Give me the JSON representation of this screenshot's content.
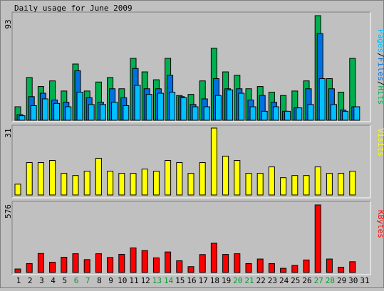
{
  "title": "Daily usage for June 2009",
  "colors": {
    "background": "#c0c0c0",
    "hits": "#00b050",
    "files": "#0070e0",
    "pages": "#00c0ff",
    "visits": "#ffff00",
    "kbytes": "#ff0000",
    "weekend": "#00a030",
    "axis_label": "#000000"
  },
  "right_labels": {
    "pages": "Pages",
    "files": "Files",
    "hits": "Hits",
    "separator": "/",
    "visits": "Visits",
    "kbytes": "KBytes"
  },
  "chart_data": [
    {
      "type": "bar",
      "name": "hits-files-pages",
      "max_label": "93",
      "ylim": [
        0,
        93
      ],
      "x": [
        1,
        2,
        3,
        4,
        5,
        6,
        7,
        8,
        9,
        10,
        11,
        12,
        13,
        14,
        15,
        16,
        17,
        18,
        19,
        20,
        21,
        22,
        23,
        24,
        25,
        26,
        27,
        28,
        29,
        30
      ],
      "series": [
        {
          "name": "Hits",
          "values": [
            12,
            38,
            30,
            35,
            26,
            50,
            26,
            34,
            38,
            28,
            55,
            43,
            36,
            55,
            22,
            23,
            35,
            64,
            43,
            40,
            28,
            30,
            25,
            22,
            26,
            35,
            93,
            37,
            25,
            55
          ]
        },
        {
          "name": "Files",
          "values": [
            5,
            21,
            24,
            18,
            16,
            44,
            20,
            16,
            28,
            20,
            46,
            28,
            28,
            40,
            21,
            14,
            19,
            37,
            28,
            28,
            18,
            22,
            16,
            8,
            11,
            28,
            77,
            28,
            9,
            12
          ]
        },
        {
          "name": "Pages",
          "values": [
            4,
            13,
            19,
            15,
            12,
            25,
            14,
            14,
            16,
            13,
            31,
            23,
            24,
            25,
            20,
            12,
            12,
            22,
            27,
            24,
            12,
            8,
            12,
            8,
            11,
            14,
            37,
            14,
            8,
            12
          ]
        }
      ]
    },
    {
      "type": "bar",
      "name": "visits",
      "max_label": "31",
      "ylim": [
        0,
        31
      ],
      "x": [
        1,
        2,
        3,
        4,
        5,
        6,
        7,
        8,
        9,
        10,
        11,
        12,
        13,
        14,
        15,
        16,
        17,
        18,
        19,
        20,
        21,
        22,
        23,
        24,
        25,
        26,
        27,
        28,
        29,
        30
      ],
      "series": [
        {
          "name": "Visits",
          "values": [
            5,
            15,
            15,
            16,
            10,
            9,
            11,
            17,
            11,
            10,
            10,
            12,
            11,
            16,
            15,
            10,
            15,
            31,
            18,
            16,
            10,
            10,
            13,
            8,
            9,
            9,
            13,
            10,
            10,
            11
          ]
        }
      ]
    },
    {
      "type": "bar",
      "name": "kbytes",
      "max_label": "576",
      "ylim": [
        0,
        576
      ],
      "x": [
        1,
        2,
        3,
        4,
        5,
        6,
        7,
        8,
        9,
        10,
        11,
        12,
        13,
        14,
        15,
        16,
        17,
        18,
        19,
        20,
        21,
        22,
        23,
        24,
        25,
        26,
        27,
        28,
        29,
        30
      ],
      "series": [
        {
          "name": "KBytes",
          "values": [
            30,
            76,
            162,
            88,
            130,
            160,
            110,
            160,
            128,
            155,
            210,
            187,
            125,
            175,
            100,
            50,
            153,
            250,
            154,
            160,
            76,
            115,
            76,
            36,
            60,
            107,
            576,
            115,
            45,
            92
          ]
        }
      ]
    }
  ],
  "x_axis": {
    "labels": [
      "1",
      "2",
      "3",
      "4",
      "5",
      "6",
      "7",
      "8",
      "9",
      "10",
      "11",
      "12",
      "13",
      "14",
      "15",
      "16",
      "17",
      "18",
      "19",
      "20",
      "21",
      "22",
      "23",
      "24",
      "25",
      "26",
      "27",
      "28",
      "29",
      "30",
      "31"
    ],
    "weekend_days": [
      6,
      7,
      13,
      14,
      20,
      21,
      27,
      28
    ]
  }
}
